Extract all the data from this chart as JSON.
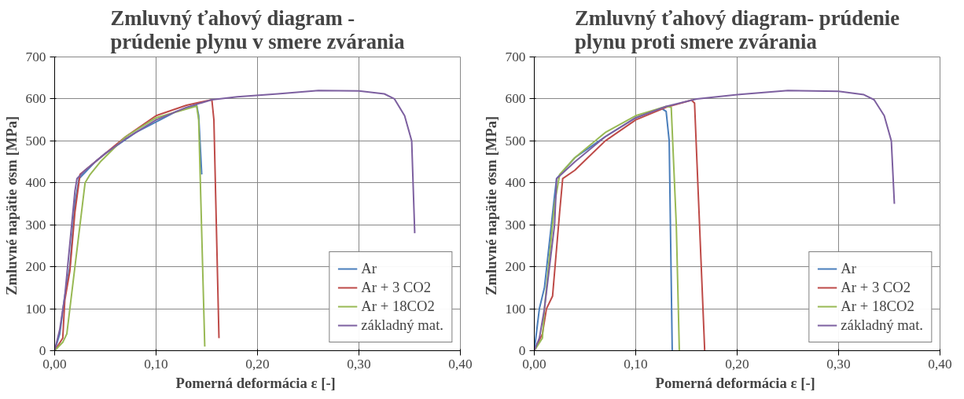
{
  "chart_data": [
    {
      "type": "line",
      "title": "Zmluvný ťahový diagram -\nprúdenie plynu v smere zvárania",
      "xlabel": "Pomerná deformácia ε  [-]",
      "ylabel": "Zmluvné napätie σsm  [MPa]",
      "xlim": [
        0,
        0.4
      ],
      "ylim": [
        0,
        700
      ],
      "xticks": [
        {
          "value": 0,
          "label": "0,00"
        },
        {
          "value": 0.1,
          "label": "0,10"
        },
        {
          "value": 0.2,
          "label": "0,20"
        },
        {
          "value": 0.3,
          "label": "0,30"
        },
        {
          "value": 0.4,
          "label": "0,40"
        }
      ],
      "yticks": [
        0,
        100,
        200,
        300,
        400,
        500,
        600,
        700
      ],
      "grid": true,
      "legend": "bottom right",
      "marker": "none",
      "line_style": "solid",
      "series": [
        {
          "name": "Ar",
          "color": "#4a7ebb",
          "x": [
            0,
            0.005,
            0.01,
            0.015,
            0.02,
            0.024,
            0.04,
            0.05,
            0.08,
            0.12,
            0.14,
            0.142,
            0.145
          ],
          "values": [
            0,
            40,
            130,
            200,
            350,
            410,
            450,
            470,
            520,
            570,
            585,
            560,
            420
          ]
        },
        {
          "name": "Ar + 3 CO2",
          "color": "#be4b48",
          "x": [
            0,
            0.008,
            0.01,
            0.015,
            0.02,
            0.025,
            0.04,
            0.07,
            0.1,
            0.13,
            0.155,
            0.157,
            0.162
          ],
          "values": [
            0,
            30,
            120,
            190,
            330,
            420,
            450,
            510,
            560,
            585,
            598,
            550,
            30
          ]
        },
        {
          "name": "Ar + 18CO2",
          "color": "#98b954",
          "x": [
            0,
            0.008,
            0.012,
            0.015,
            0.02,
            0.03,
            0.035,
            0.045,
            0.07,
            0.1,
            0.14,
            0.142,
            0.148
          ],
          "values": [
            0,
            20,
            40,
            100,
            200,
            400,
            420,
            450,
            510,
            555,
            583,
            550,
            10
          ]
        },
        {
          "name": "základný mat.",
          "color": "#7d60a0",
          "x": [
            0,
            0.005,
            0.01,
            0.02,
            0.022,
            0.03,
            0.05,
            0.07,
            0.1,
            0.13,
            0.155,
            0.18,
            0.22,
            0.26,
            0.3,
            0.325,
            0.335,
            0.345,
            0.352,
            0.355
          ],
          "values": [
            0,
            50,
            130,
            380,
            410,
            430,
            470,
            505,
            550,
            580,
            598,
            605,
            612,
            620,
            619,
            612,
            600,
            560,
            500,
            280
          ]
        }
      ]
    },
    {
      "type": "line",
      "title": "Zmluvný ťahový diagram- prúdenie\nplynu proti smere zvárania",
      "xlabel": "Pomerná deformácia ε  [-]",
      "ylabel": "Zmluvné napätie σsm  [MPa]",
      "xlim": [
        0,
        0.4
      ],
      "ylim": [
        0,
        700
      ],
      "xticks": [
        {
          "value": 0,
          "label": "0,00"
        },
        {
          "value": 0.1,
          "label": "0,10"
        },
        {
          "value": 0.2,
          "label": "0,20"
        },
        {
          "value": 0.3,
          "label": "0,30"
        },
        {
          "value": 0.4,
          "label": "0,40"
        }
      ],
      "yticks": [
        0,
        100,
        200,
        300,
        400,
        500,
        600,
        700
      ],
      "grid": true,
      "legend": "bottom right",
      "marker": "none",
      "line_style": "solid",
      "series": [
        {
          "name": "Ar",
          "color": "#4a7ebb",
          "x": [
            0,
            0.005,
            0.01,
            0.02,
            0.022,
            0.04,
            0.07,
            0.1,
            0.125,
            0.13,
            0.133,
            0.136
          ],
          "values": [
            0,
            100,
            150,
            370,
            410,
            460,
            510,
            555,
            578,
            570,
            500,
            0
          ]
        },
        {
          "name": "Ar + 3 CO2",
          "color": "#be4b48",
          "x": [
            0,
            0.008,
            0.012,
            0.018,
            0.025,
            0.028,
            0.04,
            0.07,
            0.1,
            0.13,
            0.155,
            0.158,
            0.168
          ],
          "values": [
            0,
            40,
            100,
            130,
            330,
            410,
            430,
            500,
            550,
            580,
            597,
            590,
            0
          ]
        },
        {
          "name": "Ar + 18CO2",
          "color": "#98b954",
          "x": [
            0,
            0.008,
            0.01,
            0.02,
            0.025,
            0.04,
            0.07,
            0.1,
            0.13,
            0.135,
            0.14,
            0.143
          ],
          "values": [
            0,
            30,
            100,
            350,
            420,
            460,
            520,
            560,
            582,
            580,
            300,
            0
          ]
        },
        {
          "name": "základný mat.",
          "color": "#7d60a0",
          "x": [
            0,
            0.005,
            0.01,
            0.02,
            0.022,
            0.04,
            0.07,
            0.1,
            0.13,
            0.16,
            0.2,
            0.25,
            0.3,
            0.325,
            0.335,
            0.345,
            0.352,
            0.355
          ],
          "values": [
            0,
            30,
            100,
            300,
            410,
            450,
            510,
            555,
            582,
            600,
            610,
            620,
            618,
            610,
            598,
            560,
            500,
            350
          ]
        }
      ]
    }
  ]
}
